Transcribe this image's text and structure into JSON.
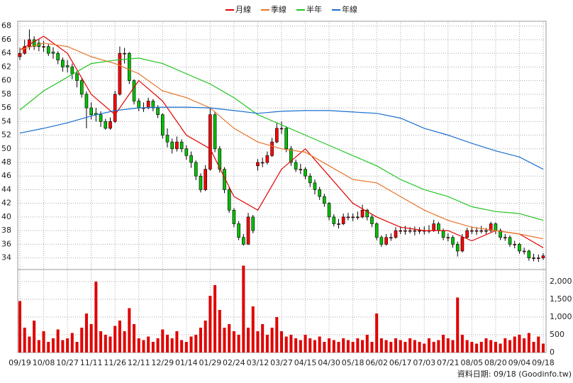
{
  "chart_data": {
    "type": "candlestick",
    "footnote": "資料日期: 09/18 (Goodinfo.tw)",
    "categories": [
      "09/19",
      null,
      null,
      null,
      null,
      "10/08",
      null,
      null,
      null,
      null,
      "10/27",
      null,
      null,
      null,
      null,
      "11/11",
      null,
      null,
      null,
      null,
      "11/26",
      null,
      null,
      null,
      null,
      "12/11",
      null,
      null,
      null,
      null,
      "12/29",
      null,
      null,
      null,
      null,
      "01/14",
      null,
      null,
      null,
      null,
      "01/29",
      null,
      null,
      null,
      null,
      "02/24",
      null,
      null,
      null,
      null,
      "03/12",
      null,
      null,
      null,
      null,
      "03/27",
      null,
      null,
      null,
      null,
      "04/15",
      null,
      null,
      null,
      null,
      "04/30",
      null,
      null,
      null,
      null,
      "05/18",
      null,
      null,
      null,
      null,
      "06/02",
      null,
      null,
      null,
      null,
      "06/17",
      null,
      null,
      null,
      null,
      "07/03",
      null,
      null,
      null,
      null,
      "07/21",
      null,
      null,
      null,
      null,
      "08/05",
      null,
      null,
      null,
      null,
      "08/20",
      null,
      null,
      null,
      null,
      "09/04",
      null,
      null,
      null,
      null,
      "09/18"
    ],
    "xlim": [
      -0.45,
      110.6
    ],
    "open": [
      63.5,
      64,
      65,
      66,
      65.5,
      65,
      65,
      64.2,
      64,
      63,
      62.2,
      62,
      61,
      60,
      58,
      56,
      55.2,
      55,
      54,
      53,
      54,
      58,
      64,
      64,
      60,
      57,
      56,
      56,
      57,
      56,
      55,
      52,
      51,
      50,
      51,
      50,
      49,
      48,
      46,
      44,
      47,
      55,
      50,
      47,
      44,
      41,
      39,
      37,
      36,
      40,
      47.5,
      48,
      48,
      49,
      51,
      53,
      53,
      50,
      48,
      47,
      47,
      46,
      45,
      44,
      43,
      42,
      40,
      39,
      39,
      40,
      40,
      40,
      40,
      41,
      40,
      39,
      37,
      36,
      37,
      37,
      38,
      38,
      38,
      38,
      38,
      38,
      38,
      38,
      39,
      38,
      37,
      37,
      36,
      35,
      37,
      38,
      38,
      38,
      38,
      38,
      39,
      38,
      37,
      37,
      36,
      36,
      35,
      35,
      34,
      34,
      34
    ],
    "high": [
      64.8,
      66,
      67.5,
      66.5,
      66,
      65.8,
      65.4,
      64.9,
      64.3,
      63.4,
      63,
      62.5,
      61.4,
      60.3,
      58.4,
      56.8,
      56,
      55.5,
      54.4,
      54.6,
      58.5,
      65,
      64.8,
      64.2,
      60.2,
      57.4,
      56.8,
      57.5,
      57.3,
      56.4,
      55.2,
      53,
      51.5,
      51.8,
      51.4,
      50.5,
      49.6,
      48.3,
      46.4,
      47.6,
      56,
      55.4,
      50.4,
      47.3,
      44.4,
      41.3,
      39.4,
      37.5,
      40.6,
      40.3,
      48.5,
      48.7,
      49.6,
      51.6,
      53.8,
      54,
      53.3,
      50.4,
      48.4,
      47.8,
      47.3,
      46.4,
      45.5,
      44.4,
      43.4,
      42.2,
      40.4,
      39.7,
      40.5,
      40.6,
      40.5,
      40.8,
      41.8,
      41.2,
      40.3,
      39.2,
      37.3,
      37.5,
      37.6,
      38.5,
      38.6,
      38.7,
      38.5,
      38.6,
      38.5,
      38.6,
      38.8,
      39.6,
      39.3,
      38.3,
      37.6,
      37.3,
      36.4,
      37.5,
      38.4,
      38.6,
      38.5,
      38.7,
      38.4,
      39.3,
      39.2,
      38.3,
      37.5,
      37.3,
      36.5,
      36.2,
      35.5,
      35.2,
      34.6,
      34.5,
      34.7
    ],
    "low": [
      63,
      63.8,
      64.5,
      64.5,
      64.3,
      64.2,
      63.6,
      63.2,
      62.4,
      61.3,
      61.2,
      60.2,
      59,
      57.5,
      53,
      54.3,
      54,
      53.2,
      52.8,
      52.8,
      53.8,
      57.8,
      62.5,
      59.5,
      56.5,
      55.5,
      55.4,
      55.8,
      55.5,
      54.5,
      51.5,
      50.2,
      49.3,
      49.6,
      49.5,
      48.4,
      47.2,
      45.4,
      43.6,
      43.8,
      46.8,
      49.5,
      46.5,
      43.5,
      40.6,
      38.5,
      36.6,
      35.8,
      35.9,
      37.6,
      46.8,
      47.3,
      47.7,
      48.8,
      50.8,
      52.2,
      49.5,
      47.5,
      46.6,
      46.3,
      45.5,
      44.4,
      43.3,
      42.5,
      41.5,
      39.5,
      38.6,
      38.3,
      38.8,
      39.5,
      39.4,
      39.6,
      39.8,
      39.5,
      38.5,
      36.6,
      35.6,
      35.8,
      36.5,
      36.8,
      37.5,
      37.4,
      37.6,
      37.3,
      37.5,
      37.4,
      37.6,
      37.8,
      37.5,
      36.6,
      36.4,
      35.5,
      34.2,
      34.8,
      36.8,
      37.5,
      37.4,
      37.6,
      37.5,
      37.8,
      37.5,
      36.6,
      36.5,
      35.6,
      35.4,
      34.6,
      34.5,
      33.6,
      33.5,
      33.4,
      33.7
    ],
    "close": [
      64,
      65,
      66,
      65,
      65,
      65,
      64,
      64,
      63,
      62,
      62,
      61,
      60,
      58,
      56,
      55,
      55,
      54,
      53,
      54,
      58,
      64,
      64,
      60,
      57,
      56,
      56,
      57,
      56,
      55,
      52,
      51,
      50,
      51,
      50,
      49,
      48,
      46,
      44,
      47,
      55,
      50,
      47,
      44,
      41,
      39,
      37,
      36,
      40,
      38,
      48,
      48,
      49,
      51,
      53,
      53,
      50,
      48,
      47,
      47,
      46,
      45,
      44,
      43,
      42,
      40,
      39,
      39,
      40,
      40,
      40,
      40,
      41,
      40,
      39,
      37,
      36,
      37,
      37,
      38,
      38,
      38,
      38,
      38,
      38,
      38,
      38,
      39,
      38,
      37,
      37,
      36,
      35,
      37,
      38,
      38,
      38,
      38,
      38,
      39,
      38,
      37,
      37,
      36,
      36,
      35,
      35,
      34,
      34,
      34,
      34.3
    ],
    "up_color": "#ff0000",
    "down_color": "#00c000",
    "ylim": [
      32.5,
      68.7
    ],
    "yticks": [
      34,
      36,
      38,
      40,
      42,
      44,
      46,
      48,
      50,
      52,
      54,
      56,
      58,
      60,
      62,
      64,
      66,
      68
    ],
    "series": [
      {
        "name": "月線",
        "color": "#e00000",
        "x": [
          0,
          5,
          10,
          15,
          20,
          25,
          30,
          35,
          40,
          45,
          50,
          55,
          60,
          65,
          70,
          75,
          80,
          85,
          90,
          95,
          100,
          105,
          110
        ],
        "values": [
          64.5,
          66.5,
          64,
          58,
          55,
          60,
          57,
          52,
          50,
          43,
          41,
          47,
          50,
          46,
          42,
          40,
          38.5,
          38,
          38,
          36.5,
          38,
          37.5,
          35.5
        ]
      },
      {
        "name": "季線",
        "color": "#e8742a",
        "x": [
          0,
          5,
          10,
          15,
          20,
          25,
          30,
          35,
          40,
          45,
          50,
          55,
          60,
          65,
          70,
          75,
          80,
          85,
          90,
          95,
          100,
          105,
          110
        ],
        "values": [
          64.5,
          65.5,
          65,
          63.5,
          62.5,
          61,
          58.5,
          57.5,
          56,
          53,
          51,
          50,
          49.5,
          47.5,
          45.5,
          45,
          43,
          41,
          39.5,
          38.5,
          38,
          37.5,
          36.8
        ]
      },
      {
        "name": "半年",
        "color": "#22c422",
        "x": [
          0,
          5,
          10,
          15,
          20,
          25,
          30,
          35,
          40,
          45,
          50,
          55,
          60,
          65,
          70,
          75,
          80,
          85,
          90,
          95,
          100,
          105,
          110
        ],
        "values": [
          55.7,
          58.5,
          60.5,
          62.5,
          63,
          63.3,
          62.5,
          61,
          59.5,
          57.5,
          55,
          53.5,
          52,
          50.5,
          49,
          47.5,
          45.5,
          44,
          43,
          41.5,
          40.8,
          40.5,
          39.5
        ]
      },
      {
        "name": "年線",
        "color": "#1a6fd0",
        "x": [
          0,
          5,
          10,
          15,
          20,
          25,
          30,
          35,
          40,
          45,
          50,
          55,
          60,
          65,
          70,
          75,
          80,
          85,
          90,
          95,
          100,
          105,
          110
        ],
        "values": [
          52.3,
          53,
          53.8,
          54.8,
          55.6,
          56,
          56.1,
          56.1,
          56,
          55.6,
          55.2,
          55.5,
          55.6,
          55.6,
          55.4,
          55.2,
          54.5,
          53,
          52,
          50.8,
          49.7,
          48.8,
          47
        ]
      }
    ],
    "volume": {
      "color": "#e00000",
      "values": [
        1450,
        700,
        450,
        900,
        350,
        600,
        300,
        400,
        650,
        350,
        400,
        550,
        300,
        700,
        1100,
        800,
        2000,
        600,
        500,
        450,
        750,
        900,
        600,
        1250,
        800,
        400,
        350,
        450,
        300,
        400,
        650,
        500,
        400,
        600,
        350,
        300,
        450,
        500,
        700,
        900,
        1600,
        1900,
        1200,
        700,
        800,
        600,
        500,
        2450,
        700,
        1300,
        600,
        800,
        500,
        700,
        1000,
        600,
        450,
        500,
        400,
        350,
        500,
        400,
        350,
        450,
        300,
        400,
        350,
        300,
        400,
        350,
        300,
        400,
        350,
        500,
        300,
        1100,
        400,
        350,
        300,
        400,
        350,
        300,
        400,
        350,
        300,
        250,
        400,
        300,
        350,
        500,
        400,
        350,
        1550,
        500,
        350,
        300,
        250,
        300,
        400,
        350,
        300,
        250,
        400,
        350,
        450,
        500,
        400,
        550,
        300,
        450,
        250
      ],
      "ylim": [
        0,
        2340
      ],
      "yticks": [
        0,
        500,
        {
          "value": 1000,
          "label": "1,000"
        },
        {
          "value": 1500,
          "label": "1,500"
        },
        {
          "value": 2000,
          "label": "2,000"
        }
      ]
    },
    "grid": true
  }
}
